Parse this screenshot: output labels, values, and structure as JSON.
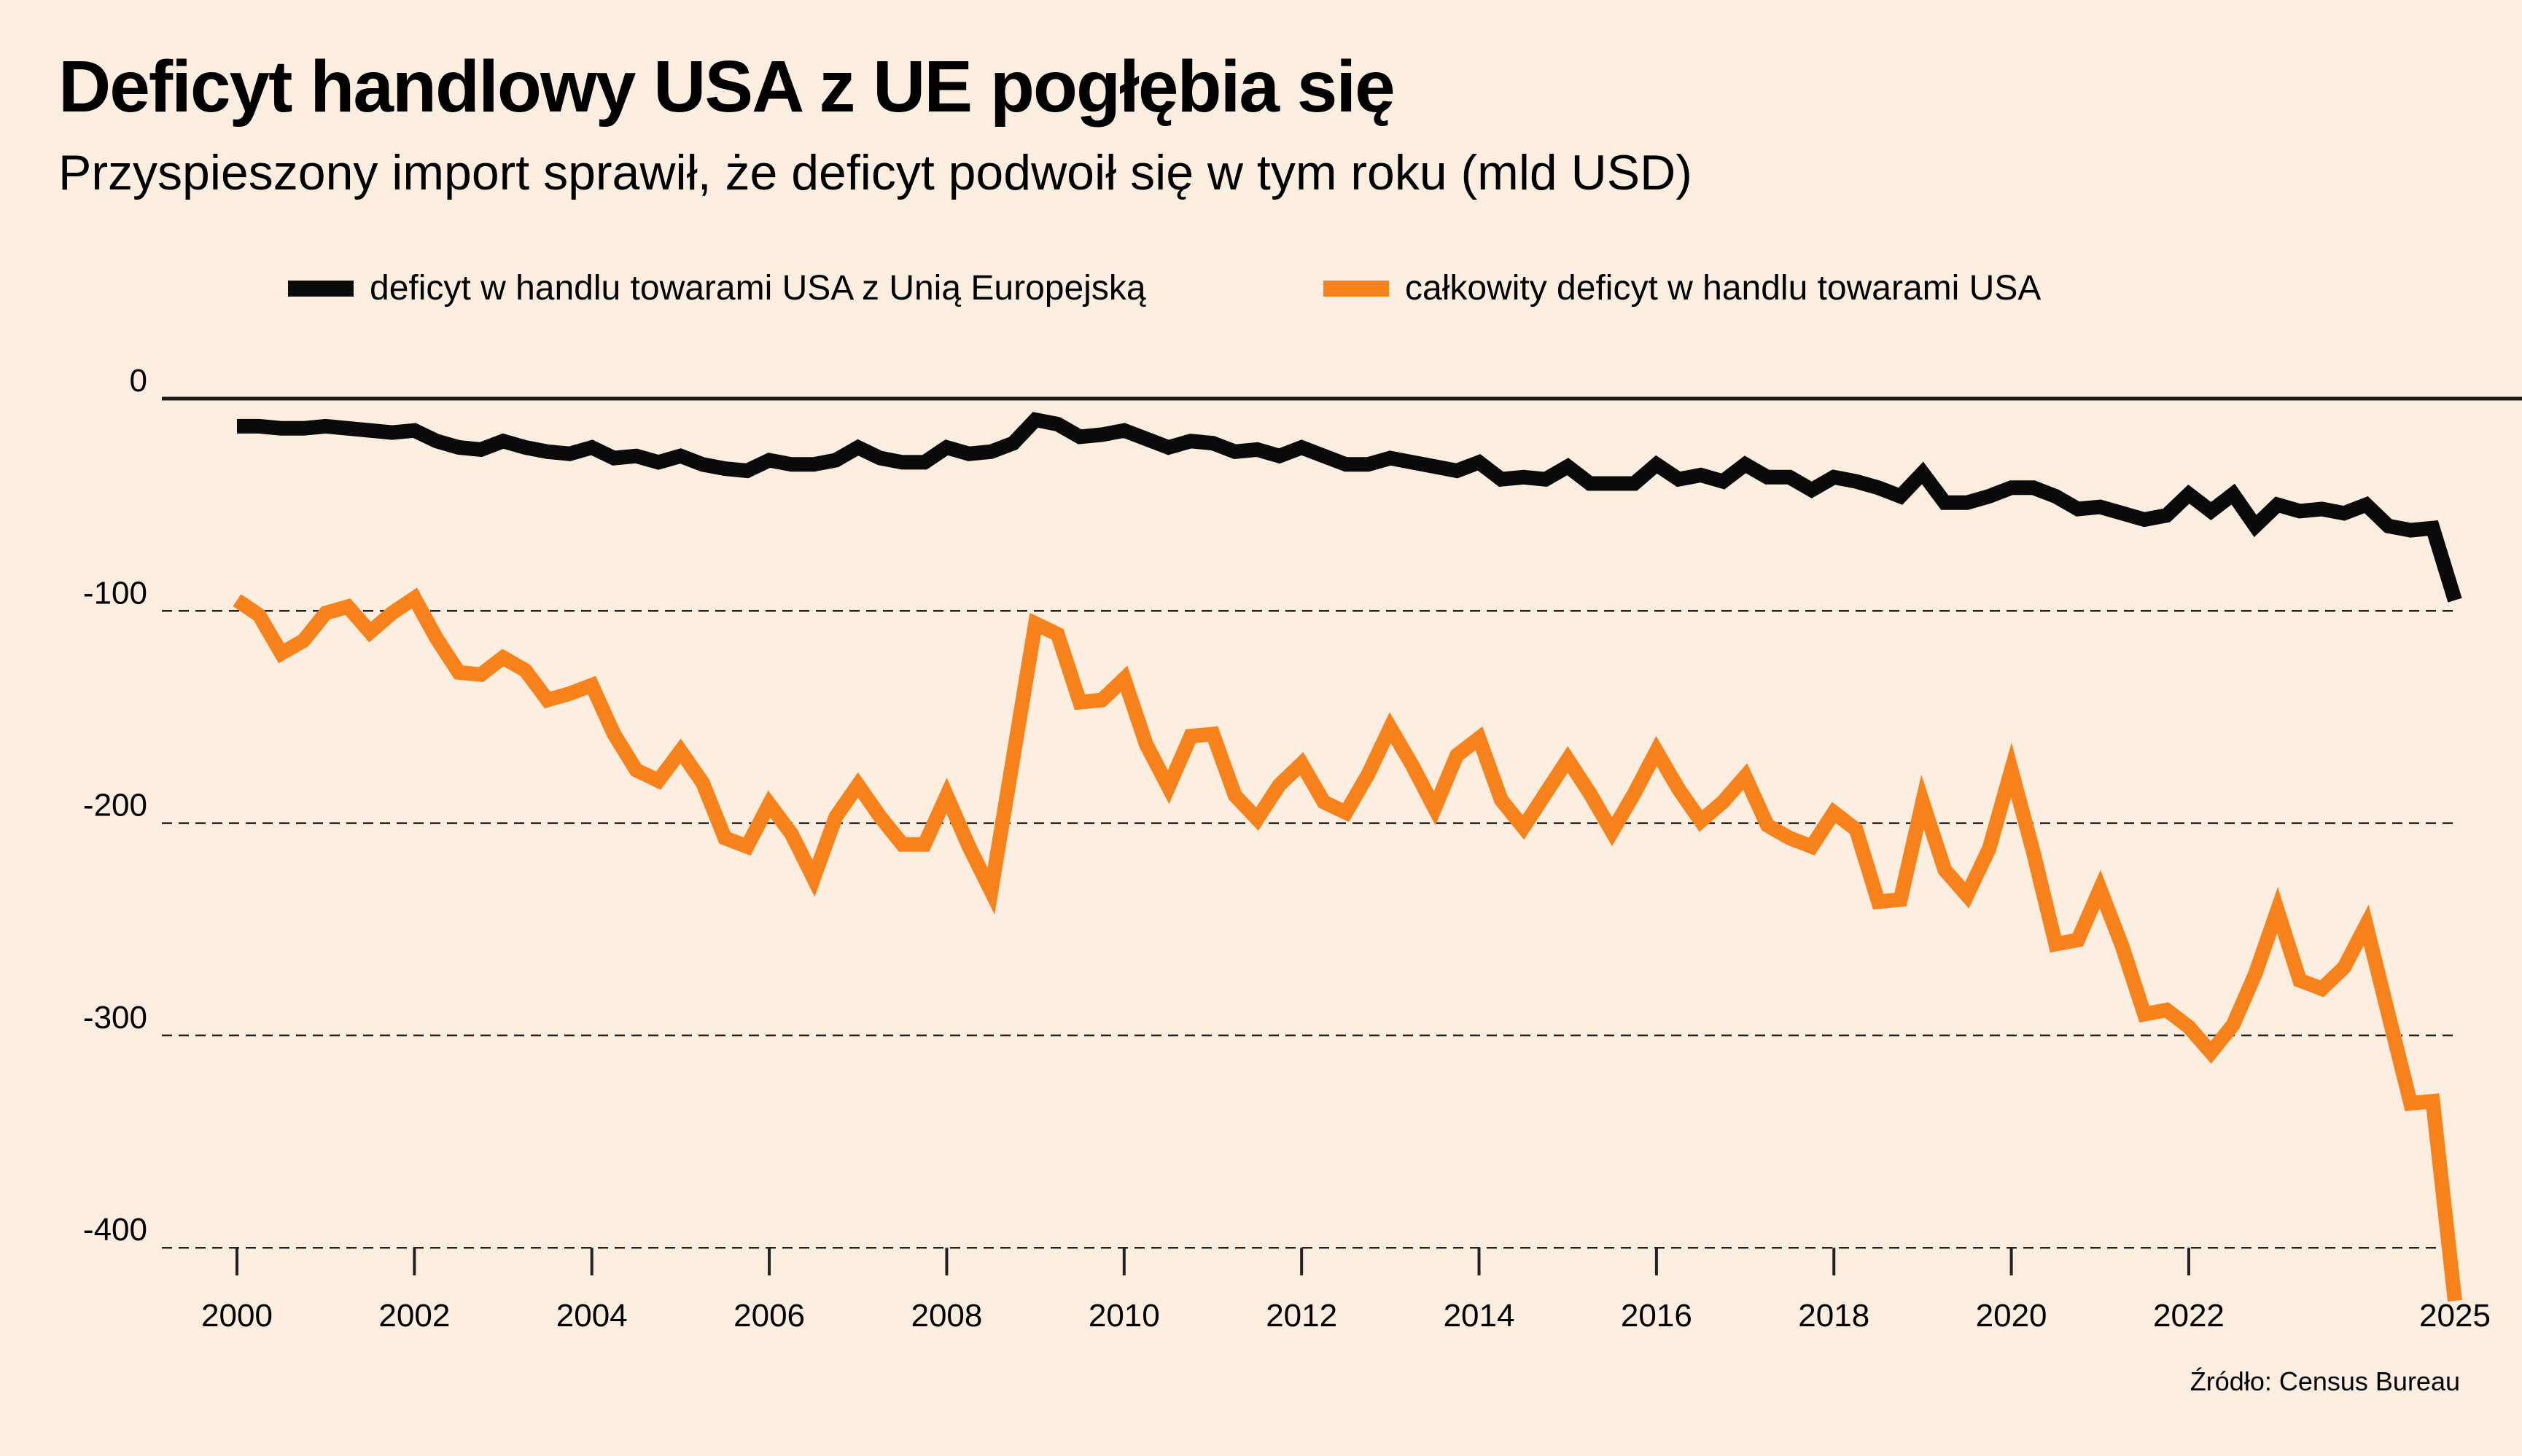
{
  "title": "Deficyt handlowy USA z UE pogłębia się",
  "subtitle": "Przyspieszony import sprawił, że deficyt podwoił się w tym roku (mld USD)",
  "source": "Źródło: Census Bureau",
  "colors": {
    "background": "#fbede0",
    "eu": "#0a0a0a",
    "total": "#f7821b"
  },
  "chart_data": {
    "type": "line",
    "title": "Deficyt handlowy USA z UE pogłębia się",
    "subtitle": "Przyspieszony import sprawił, że deficyt podwoił się w tym roku (mld USD)",
    "xlabel": "",
    "ylabel": "mld USD",
    "ylim": [
      -430,
      0
    ],
    "xlim": [
      2000,
      2025
    ],
    "yticks": [
      0,
      -100,
      -200,
      -300,
      -400
    ],
    "ytick_labels": [
      "0",
      "-100",
      "-200",
      "-300",
      "-400"
    ],
    "xticks": [
      2000,
      2002,
      2004,
      2006,
      2008,
      2010,
      2012,
      2014,
      2016,
      2018,
      2020,
      2022,
      2025
    ],
    "xtick_labels": [
      "2000",
      "2002",
      "2004",
      "2006",
      "2008",
      "2010",
      "2012",
      "2014",
      "2016",
      "2018",
      "2020",
      "2022",
      "2025"
    ],
    "grid": "horizontal dashed",
    "legend_position": "top",
    "x_frequency": "quarterly",
    "series": [
      {
        "name": "deficyt w handlu towarami USA z Unią Europejską",
        "color": "#0a0a0a",
        "values": [
          -13,
          -13,
          -14,
          -14,
          -13,
          -14,
          -15,
          -16,
          -15,
          -20,
          -23,
          -24,
          -20,
          -23,
          -25,
          -26,
          -23,
          -28,
          -27,
          -30,
          -27,
          -31,
          -33,
          -34,
          -29,
          -31,
          -31,
          -29,
          -23,
          -28,
          -30,
          -30,
          -23,
          -26,
          -25,
          -21,
          -10,
          -12,
          -18,
          -17,
          -15,
          -19,
          -23,
          -20,
          -21,
          -25,
          -24,
          -27,
          -23,
          -27,
          -31,
          -31,
          -28,
          -30,
          -32,
          -34,
          -30,
          -38,
          -37,
          -38,
          -32,
          -40,
          -40,
          -40,
          -31,
          -38,
          -36,
          -39,
          -31,
          -37,
          -37,
          -43,
          -37,
          -39,
          -42,
          -46,
          -35,
          -49,
          -49,
          -46,
          -42,
          -42,
          -46,
          -52,
          -51,
          -54,
          -57,
          -55,
          -45,
          -53,
          -45,
          -60,
          -50,
          -53,
          -52,
          -54,
          -50,
          -60,
          -62,
          -61,
          -95
        ]
      },
      {
        "name": "całkowity deficyt w handlu towarami USA",
        "color": "#f7821b",
        "values": [
          -95,
          -102,
          -120,
          -114,
          -101,
          -98,
          -110,
          -101,
          -94,
          -113,
          -129,
          -130,
          -122,
          -128,
          -142,
          -139,
          -135,
          -158,
          -175,
          -180,
          -166,
          -181,
          -207,
          -211,
          -191,
          -205,
          -226,
          -197,
          -182,
          -197,
          -210,
          -210,
          -187,
          -211,
          -232,
          -169,
          -106,
          -111,
          -143,
          -142,
          -132,
          -163,
          -183,
          -159,
          -158,
          -187,
          -198,
          -182,
          -172,
          -190,
          -195,
          -177,
          -155,
          -173,
          -193,
          -168,
          -160,
          -189,
          -202,
          -186,
          -170,
          -186,
          -204,
          -186,
          -166,
          -184,
          -199,
          -190,
          -178,
          -201,
          -207,
          -211,
          -195,
          -203,
          -237,
          -236,
          -190,
          -222,
          -234,
          -212,
          -175,
          -214,
          -257,
          -255,
          -231,
          -258,
          -290,
          -288,
          -296,
          -308,
          -295,
          -271,
          -241,
          -274,
          -278,
          -268,
          -248,
          -290,
          -332,
          -331,
          -425
        ]
      }
    ]
  }
}
